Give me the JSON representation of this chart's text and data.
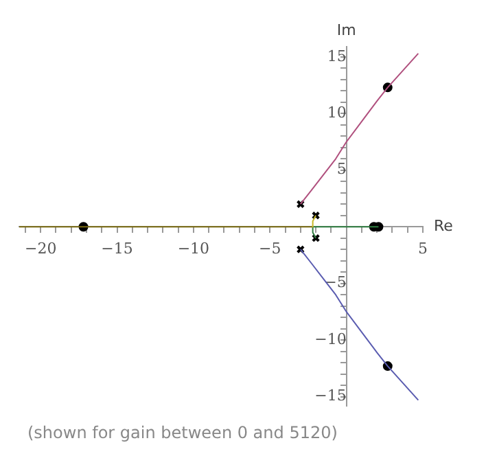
{
  "chart_data": {
    "type": "line",
    "xlabel": "Re",
    "ylabel": "Im",
    "annotations": [
      "(shown for gain between 0 and 5120)"
    ],
    "xlim": [
      -21.4,
      5
    ],
    "ylim": [
      -15.8,
      15.9
    ],
    "xticks": [
      {
        "value": -21,
        "label": null
      },
      {
        "value": -20,
        "label": "−20"
      },
      {
        "value": -19,
        "label": null
      },
      {
        "value": -18,
        "label": null
      },
      {
        "value": -17,
        "label": null
      },
      {
        "value": -16,
        "label": null
      },
      {
        "value": -15,
        "label": "−15"
      },
      {
        "value": -14,
        "label": null
      },
      {
        "value": -13,
        "label": null
      },
      {
        "value": -12,
        "label": null
      },
      {
        "value": -11,
        "label": null
      },
      {
        "value": -10,
        "label": "−10"
      },
      {
        "value": -9,
        "label": null
      },
      {
        "value": -8,
        "label": null
      },
      {
        "value": -7,
        "label": null
      },
      {
        "value": -6,
        "label": null
      },
      {
        "value": -5,
        "label": "−5"
      },
      {
        "value": -4,
        "label": null
      },
      {
        "value": -3,
        "label": null
      },
      {
        "value": -2,
        "label": null
      },
      {
        "value": -1,
        "label": null
      },
      {
        "value": 1,
        "label": null
      },
      {
        "value": 2,
        "label": null
      },
      {
        "value": 3,
        "label": null
      },
      {
        "value": 4,
        "label": null
      },
      5
    ],
    "yticks": [
      {
        "value": -15,
        "label": "−15"
      },
      {
        "value": -14,
        "label": null
      },
      {
        "value": -13,
        "label": null
      },
      {
        "value": -12,
        "label": null
      },
      {
        "value": -11,
        "label": null
      },
      {
        "value": -10,
        "label": "−10"
      },
      {
        "value": -9,
        "label": null
      },
      {
        "value": -8,
        "label": null
      },
      {
        "value": -7,
        "label": null
      },
      {
        "value": -6,
        "label": null
      },
      {
        "value": -5,
        "label": "−5"
      },
      {
        "value": -4,
        "label": null
      },
      {
        "value": -3,
        "label": null
      },
      {
        "value": -2,
        "label": null
      },
      {
        "value": -1,
        "label": null
      },
      {
        "value": 1,
        "label": null
      },
      {
        "value": 2,
        "label": null
      },
      {
        "value": 3,
        "label": null
      },
      {
        "value": 4,
        "label": null
      },
      5,
      {
        "value": 6,
        "label": null
      },
      {
        "value": 7,
        "label": null
      },
      {
        "value": 8,
        "label": null
      },
      {
        "value": 9,
        "label": null
      },
      10,
      {
        "value": 11,
        "label": null
      },
      {
        "value": 12,
        "label": null
      },
      {
        "value": 13,
        "label": null
      },
      {
        "value": 14,
        "label": null
      },
      15
    ],
    "grid": false,
    "legend": false,
    "series": [
      {
        "color": "#b0507e",
        "marker": "none",
        "x": [
          -3,
          -2.3,
          -1.5,
          -0.7,
          0,
          1,
          2,
          2.7,
          3.7,
          4.7
        ],
        "values": [
          2,
          3.2,
          4.6,
          6,
          7.5,
          9.3,
          11.1,
          12.3,
          13.8,
          15.3
        ]
      },
      {
        "color": "#5a5cb0",
        "marker": "none",
        "x": [
          -3,
          -2.3,
          -1.5,
          -0.7,
          0,
          1,
          2,
          2.7,
          3.7,
          4.7
        ],
        "values": [
          -2,
          -3.2,
          -4.6,
          -6,
          -7.5,
          -9.3,
          -11.1,
          -12.3,
          -13.8,
          -15.3
        ]
      },
      {
        "color": "#c8b828",
        "marker": "none",
        "x": [
          -2,
          -2.2,
          -2.2
        ],
        "values": [
          1,
          0.5,
          0
        ]
      },
      {
        "color": "#7a6a10",
        "marker": "none",
        "x": [
          -2.2,
          -21.4
        ],
        "values": [
          0,
          0
        ]
      },
      {
        "color": "#2e7d40",
        "marker": "none",
        "x": [
          -2,
          -2.2,
          -2.2,
          2.1
        ],
        "values": [
          -1,
          -0.5,
          0,
          0
        ]
      },
      {
        "type": "scatter",
        "color": "#000000",
        "marker": "cross",
        "x": [
          -3,
          -2,
          -2,
          -3
        ],
        "values": [
          2,
          1,
          -1,
          -2
        ]
      },
      {
        "type": "scatter",
        "color": "#000000",
        "marker": "circle",
        "x": [
          -17.2,
          1.8,
          2.1,
          2.7,
          2.7
        ],
        "values": [
          0,
          0,
          0,
          12.3,
          -12.3
        ]
      }
    ]
  }
}
